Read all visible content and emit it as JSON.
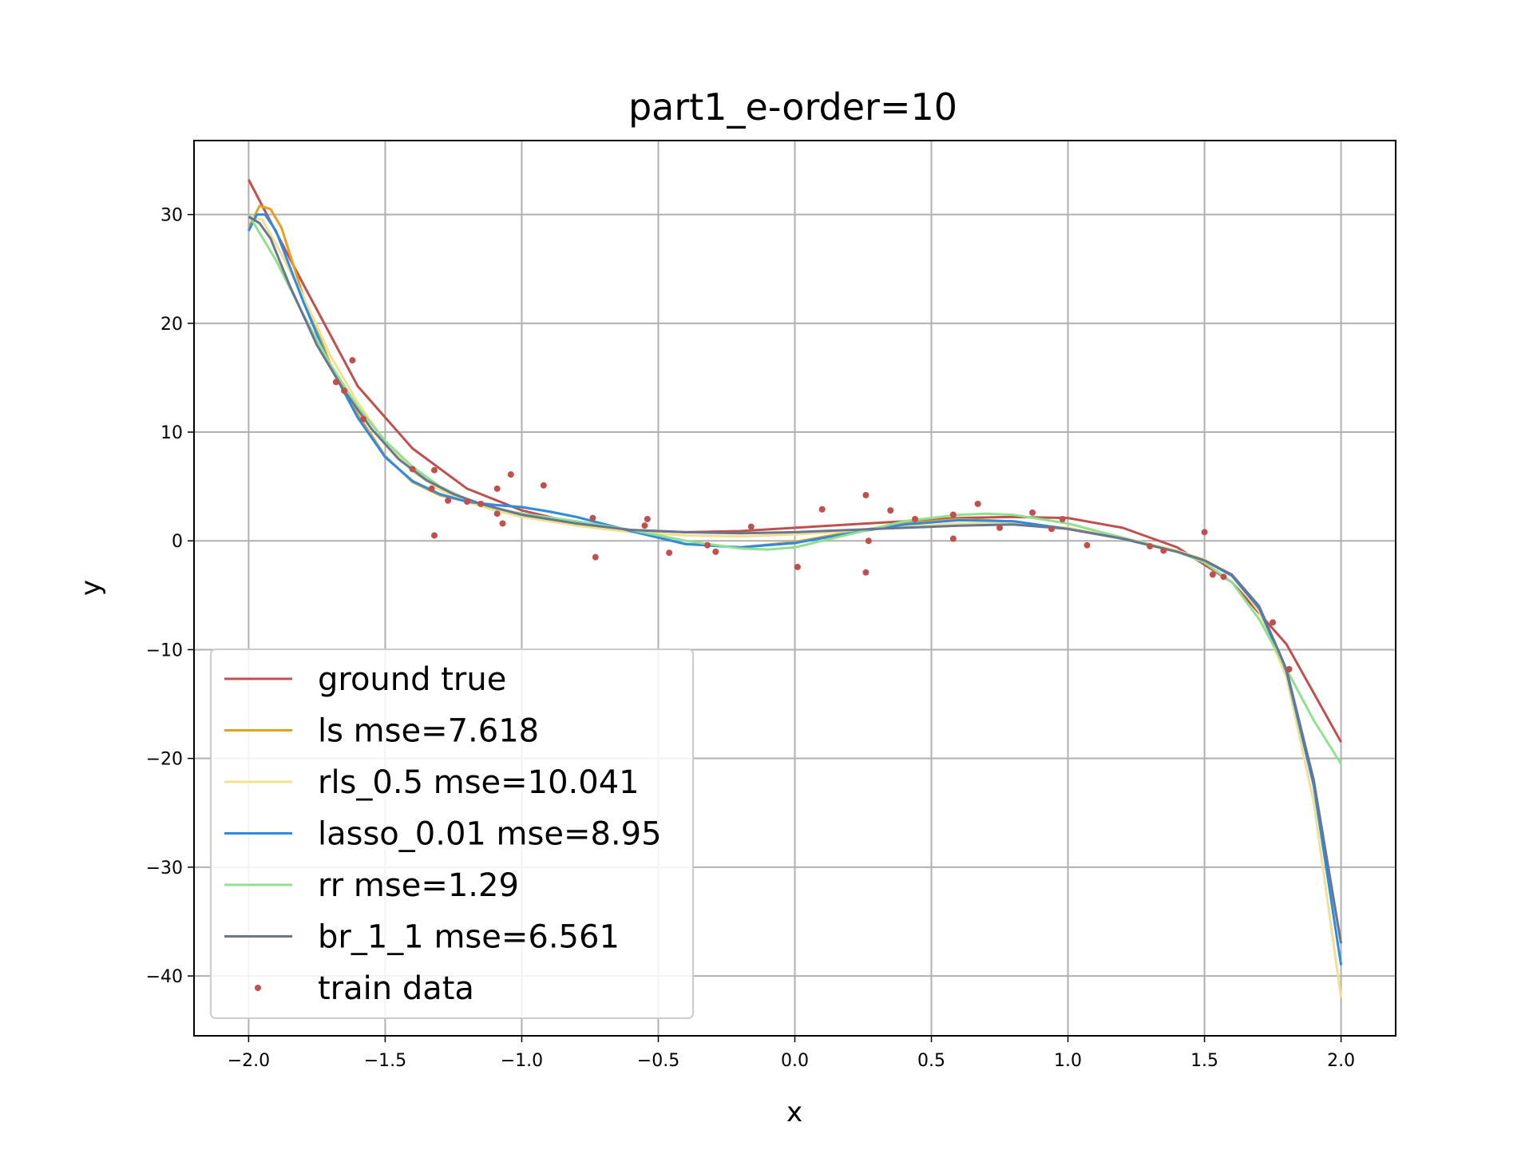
{
  "chart_data": {
    "type": "line",
    "title": "part1_e-order=10",
    "xlabel": "x",
    "ylabel": "y",
    "xlim": [
      -2.2,
      2.2
    ],
    "ylim": [
      -45.5,
      36.8
    ],
    "xticks": [
      -2.0,
      -1.5,
      -1.0,
      -0.5,
      0.0,
      0.5,
      1.0,
      1.5,
      2.0
    ],
    "xtick_labels": [
      "−2.0",
      "−1.5",
      "−1.0",
      "−0.5",
      "0.0",
      "0.5",
      "1.0",
      "1.5",
      "2.0"
    ],
    "yticks": [
      30,
      20,
      10,
      0,
      -10,
      -20,
      -30,
      -40
    ],
    "ytick_labels": [
      "30",
      "20",
      "10",
      "0",
      "−10",
      "−20",
      "−30",
      "−40"
    ],
    "grid": true,
    "legend_position": "lower-left",
    "series": [
      {
        "name": "ground true",
        "color": "#c0504d",
        "x": [
          -2.0,
          -1.8,
          -1.6,
          -1.4,
          -1.2,
          -1.0,
          -0.8,
          -0.6,
          -0.4,
          -0.2,
          0.0,
          0.2,
          0.4,
          0.6,
          0.8,
          1.0,
          1.2,
          1.4,
          1.6,
          1.8,
          2.0
        ],
        "y": [
          33.2,
          23.6,
          14.2,
          8.5,
          4.8,
          2.8,
          1.6,
          1.0,
          0.8,
          0.9,
          1.2,
          1.5,
          1.8,
          2.1,
          2.2,
          2.1,
          1.2,
          -0.6,
          -3.8,
          -9.5,
          -18.5
        ]
      },
      {
        "name": "ls mse=7.618",
        "color": "#e8a020",
        "x": [
          -2.0,
          -1.96,
          -1.92,
          -1.88,
          -1.8,
          -1.7,
          -1.6,
          -1.5,
          -1.4,
          -1.3,
          -1.2,
          -1.1,
          -1.0,
          -0.9,
          -0.8,
          -0.6,
          -0.4,
          -0.2,
          0.0,
          0.2,
          0.4,
          0.6,
          0.8,
          1.0,
          1.2,
          1.4,
          1.5,
          1.6,
          1.7,
          1.8,
          1.9,
          2.0
        ],
        "y": [
          28.8,
          30.8,
          30.5,
          28.8,
          22.5,
          16.2,
          11.6,
          7.8,
          5.4,
          4.2,
          3.6,
          3.3,
          3.1,
          2.7,
          2.2,
          0.9,
          -0.3,
          -0.6,
          -0.1,
          0.8,
          1.6,
          2.0,
          1.8,
          1.1,
          0.2,
          -1.0,
          -1.8,
          -3.2,
          -6.2,
          -12.0,
          -22.5,
          -37.0
        ]
      },
      {
        "name": "rls_0.5 mse=10.041",
        "color": "#f0e090",
        "x": [
          -2.0,
          -1.95,
          -1.9,
          -1.8,
          -1.7,
          -1.6,
          -1.5,
          -1.4,
          -1.3,
          -1.2,
          -1.1,
          -1.0,
          -0.8,
          -0.6,
          -0.4,
          -0.2,
          0.0,
          0.2,
          0.4,
          0.6,
          0.8,
          1.0,
          1.2,
          1.4,
          1.5,
          1.6,
          1.7,
          1.8,
          1.9,
          2.0
        ],
        "y": [
          29.8,
          29.5,
          27.3,
          22.5,
          17.0,
          12.7,
          9.1,
          6.4,
          4.7,
          3.6,
          2.8,
          2.2,
          1.4,
          0.8,
          0.5,
          0.4,
          0.6,
          0.9,
          1.3,
          1.6,
          1.6,
          1.2,
          0.3,
          -0.9,
          -1.7,
          -3.2,
          -6.5,
          -12.5,
          -24.0,
          -42.0
        ]
      },
      {
        "name": "lasso_0.01 mse=8.95",
        "color": "#2b8ce6",
        "x": [
          -2.0,
          -1.97,
          -1.94,
          -1.9,
          -1.8,
          -1.7,
          -1.6,
          -1.5,
          -1.4,
          -1.3,
          -1.2,
          -1.1,
          -1.0,
          -0.9,
          -0.8,
          -0.6,
          -0.4,
          -0.2,
          0.0,
          0.2,
          0.4,
          0.6,
          0.8,
          1.0,
          1.2,
          1.4,
          1.5,
          1.6,
          1.7,
          1.8,
          1.9,
          2.0
        ],
        "y": [
          28.5,
          30.0,
          30.0,
          28.5,
          22.0,
          16.0,
          11.3,
          7.7,
          5.5,
          4.3,
          3.6,
          3.3,
          3.1,
          2.7,
          2.2,
          0.9,
          -0.3,
          -0.6,
          -0.2,
          0.7,
          1.5,
          1.9,
          1.8,
          1.1,
          0.2,
          -1.0,
          -1.8,
          -3.2,
          -6.2,
          -12.0,
          -22.5,
          -39.0
        ]
      },
      {
        "name": "rr mse=1.29",
        "color": "#90e090",
        "x": [
          -2.0,
          -1.9,
          -1.8,
          -1.7,
          -1.6,
          -1.5,
          -1.4,
          -1.3,
          -1.2,
          -1.1,
          -1.0,
          -0.8,
          -0.6,
          -0.4,
          -0.2,
          -0.1,
          0.0,
          0.2,
          0.4,
          0.6,
          0.7,
          0.8,
          1.0,
          1.2,
          1.4,
          1.5,
          1.6,
          1.7,
          1.8,
          1.9,
          2.0
        ],
        "y": [
          30.0,
          25.8,
          20.8,
          16.2,
          12.3,
          9.2,
          6.8,
          5.0,
          3.8,
          3.0,
          2.5,
          1.8,
          1.0,
          0.0,
          -0.7,
          -0.8,
          -0.6,
          0.6,
          1.8,
          2.4,
          2.5,
          2.4,
          1.6,
          0.3,
          -1.0,
          -2.0,
          -3.8,
          -7.2,
          -11.8,
          -16.5,
          -20.5
        ]
      },
      {
        "name": "br_1_1 mse=6.561",
        "color": "#6a7590",
        "x": [
          -2.0,
          -1.96,
          -1.92,
          -1.85,
          -1.75,
          -1.65,
          -1.55,
          -1.45,
          -1.35,
          -1.25,
          -1.15,
          -1.0,
          -0.8,
          -0.6,
          -0.4,
          -0.2,
          0.0,
          0.2,
          0.4,
          0.6,
          0.8,
          1.0,
          1.2,
          1.4,
          1.5,
          1.6,
          1.7,
          1.8,
          1.9,
          2.0
        ],
        "y": [
          29.8,
          29.2,
          27.8,
          23.5,
          18.0,
          13.8,
          10.3,
          7.5,
          5.6,
          4.3,
          3.4,
          2.4,
          1.6,
          1.0,
          0.8,
          0.7,
          0.8,
          1.0,
          1.2,
          1.4,
          1.5,
          1.1,
          0.2,
          -1.0,
          -1.8,
          -3.1,
          -6.0,
          -11.8,
          -22.0,
          -37.0
        ]
      }
    ],
    "scatter": {
      "name": "train data",
      "color": "#c0504d",
      "points": [
        [
          -1.68,
          14.6
        ],
        [
          -1.65,
          13.8
        ],
        [
          -1.62,
          16.6
        ],
        [
          -1.58,
          11.2
        ],
        [
          -1.4,
          6.6
        ],
        [
          -1.33,
          4.8
        ],
        [
          -1.32,
          6.5
        ],
        [
          -1.32,
          0.5
        ],
        [
          -1.27,
          3.7
        ],
        [
          -1.2,
          3.6
        ],
        [
          -1.15,
          3.4
        ],
        [
          -1.09,
          4.8
        ],
        [
          -1.09,
          2.5
        ],
        [
          -1.07,
          1.6
        ],
        [
          -1.04,
          6.1
        ],
        [
          -0.92,
          5.1
        ],
        [
          -0.74,
          2.1
        ],
        [
          -0.73,
          -1.5
        ],
        [
          -0.55,
          1.4
        ],
        [
          -0.54,
          2.0
        ],
        [
          -0.46,
          -1.1
        ],
        [
          -0.32,
          -0.4
        ],
        [
          -0.29,
          -1.0
        ],
        [
          -0.16,
          1.3
        ],
        [
          0.01,
          -2.4
        ],
        [
          0.1,
          2.9
        ],
        [
          0.26,
          -2.9
        ],
        [
          0.26,
          4.2
        ],
        [
          0.27,
          0.0
        ],
        [
          0.35,
          2.8
        ],
        [
          0.44,
          2.0
        ],
        [
          0.58,
          2.4
        ],
        [
          0.58,
          0.2
        ],
        [
          0.67,
          3.4
        ],
        [
          0.75,
          1.2
        ],
        [
          0.87,
          2.6
        ],
        [
          0.94,
          1.1
        ],
        [
          0.98,
          2.0
        ],
        [
          1.07,
          -0.4
        ],
        [
          1.3,
          -0.5
        ],
        [
          1.35,
          -0.9
        ],
        [
          1.5,
          0.8
        ],
        [
          1.53,
          -3.1
        ],
        [
          1.57,
          -3.3
        ],
        [
          1.75,
          -7.5
        ],
        [
          1.81,
          -11.8
        ]
      ]
    }
  }
}
